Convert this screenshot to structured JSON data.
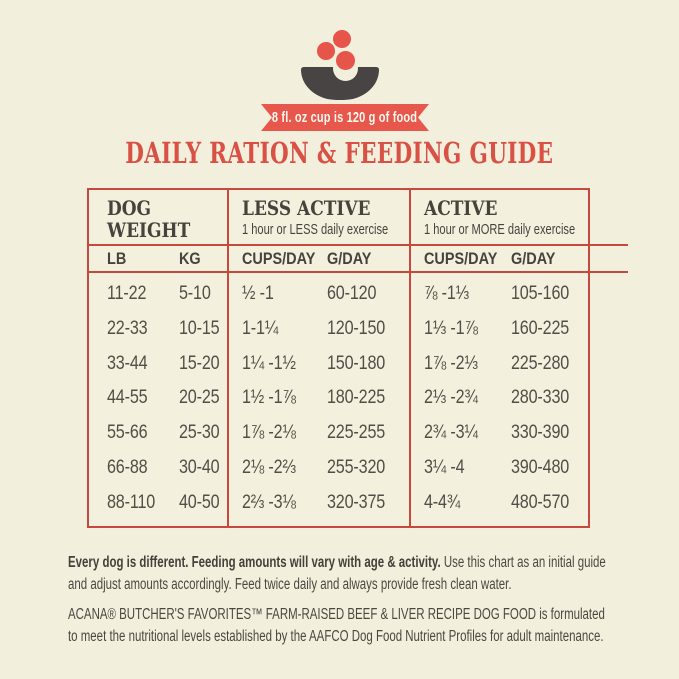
{
  "colors": {
    "background": "#f3efdd",
    "accent_red_title": "#d95045",
    "ribbon_red": "#e7574b",
    "table_border_red": "#c6493e",
    "bowl_gray": "#484443",
    "heading_text": "#47433c",
    "body_text": "#4b473f"
  },
  "icon": {
    "name": "bowl-with-kibble"
  },
  "badge": {
    "label": "8 fl. oz cup is 120 g of food"
  },
  "title": "DAILY RATION & FEEDING GUIDE",
  "table": {
    "groups": [
      {
        "title": "DOG WEIGHT",
        "subtitle": "",
        "col1": "LB",
        "col2": "KG"
      },
      {
        "title": "LESS ACTIVE",
        "subtitle": "1 hour or LESS daily exercise",
        "col1": "CUPS/DAY",
        "col2": "G/DAY"
      },
      {
        "title": "ACTIVE",
        "subtitle": "1 hour or MORE daily exercise",
        "col1": "CUPS/DAY",
        "col2": "G/DAY"
      }
    ],
    "rows": [
      {
        "lb": "11-22",
        "kg": "5-10",
        "less_cups": "½ -1",
        "less_g": "60-120",
        "active_cups": "⅞ -1⅓",
        "active_g": "105-160"
      },
      {
        "lb": "22-33",
        "kg": "10-15",
        "less_cups": "1-1¼",
        "less_g": "120-150",
        "active_cups": "1⅓ -1⅞",
        "active_g": "160-225"
      },
      {
        "lb": "33-44",
        "kg": "15-20",
        "less_cups": "1¼ -1½",
        "less_g": "150-180",
        "active_cups": "1⅞ -2⅓",
        "active_g": "225-280"
      },
      {
        "lb": "44-55",
        "kg": "20-25",
        "less_cups": "1½ -1⅞",
        "less_g": "180-225",
        "active_cups": "2⅓ -2¾",
        "active_g": "280-330"
      },
      {
        "lb": "55-66",
        "kg": "25-30",
        "less_cups": "1⅞ -2⅛",
        "less_g": "225-255",
        "active_cups": "2¾ -3¼",
        "active_g": "330-390"
      },
      {
        "lb": "66-88",
        "kg": "30-40",
        "less_cups": "2⅛ -2⅔",
        "less_g": "255-320",
        "active_cups": "3¼ -4",
        "active_g": "390-480"
      },
      {
        "lb": "88-110",
        "kg": "40-50",
        "less_cups": "2⅔ -3⅛",
        "less_g": "320-375",
        "active_cups": "4-4¾",
        "active_g": "480-570"
      }
    ]
  },
  "notes": {
    "note1_bold": "Every dog is different. Feeding amounts will vary with age & activity.",
    "note1_rest": " Use this chart as an initial guide and adjust amounts accordingly. Feed twice daily and always provide fresh clean water.",
    "note2": "ACANA® BUTCHER'S FAVORITES™ FARM-RAISED BEEF & LIVER RECIPE DOG FOOD is formulated to meet the nutritional levels established by the AAFCO Dog Food Nutrient Profiles for adult maintenance."
  },
  "chart_data": {
    "type": "table",
    "title": "DAILY RATION & FEEDING GUIDE",
    "note": "8 fl. oz cup is 120 g of food",
    "columns": [
      "DOG WEIGHT LB",
      "DOG WEIGHT KG",
      "LESS ACTIVE CUPS/DAY",
      "LESS ACTIVE G/DAY",
      "ACTIVE CUPS/DAY",
      "ACTIVE G/DAY"
    ],
    "rows": [
      [
        "11-22",
        "5-10",
        "½-1",
        "60-120",
        "⅞-1⅓",
        "105-160"
      ],
      [
        "22-33",
        "10-15",
        "1-1¼",
        "120-150",
        "1⅓-1⅞",
        "160-225"
      ],
      [
        "33-44",
        "15-20",
        "1¼-1½",
        "150-180",
        "1⅞-2⅓",
        "225-280"
      ],
      [
        "44-55",
        "20-25",
        "1½-1⅞",
        "180-225",
        "2⅓-2¾",
        "280-330"
      ],
      [
        "55-66",
        "25-30",
        "1⅞-2⅛",
        "225-255",
        "2¾-3¼",
        "330-390"
      ],
      [
        "66-88",
        "30-40",
        "2⅛-2⅔",
        "255-320",
        "3¼-4",
        "390-480"
      ],
      [
        "88-110",
        "40-50",
        "2⅔-3⅛",
        "320-375",
        "4-4¾",
        "480-570"
      ]
    ]
  }
}
